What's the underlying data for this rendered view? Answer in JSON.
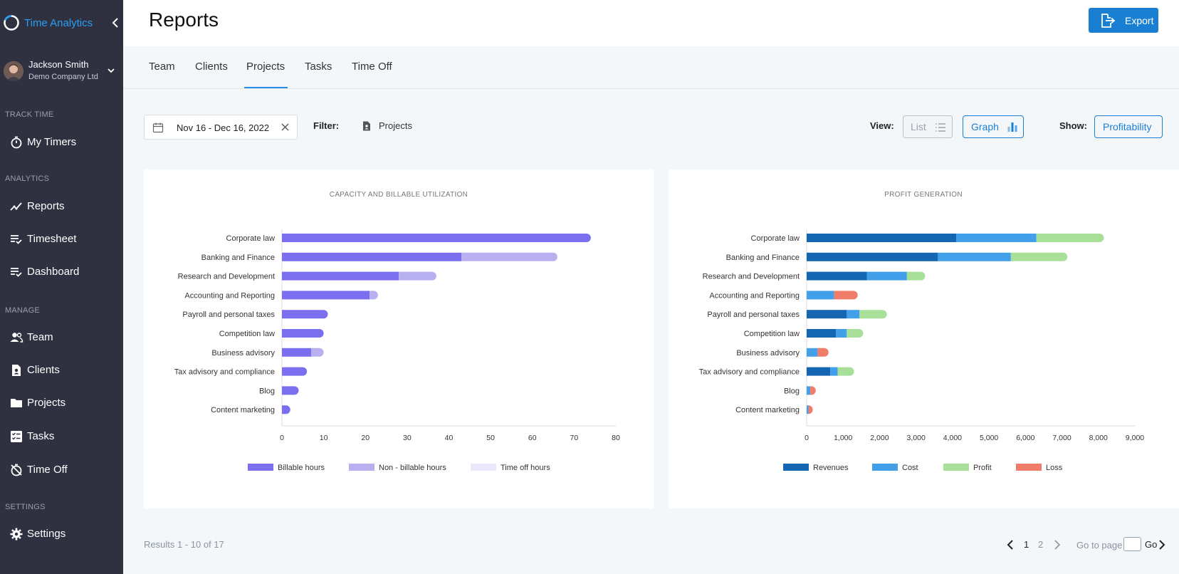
{
  "app": {
    "name": "Time Analytics"
  },
  "user": {
    "name": "Jackson Smith",
    "company": "Demo Company Ltd"
  },
  "sidebar": {
    "sections": [
      {
        "label": "TRACK TIME",
        "items": [
          {
            "label": "My Timers",
            "icon": "stopwatch-icon"
          }
        ]
      },
      {
        "label": "ANALYTICS",
        "items": [
          {
            "label": "Reports",
            "icon": "trend-icon"
          },
          {
            "label": "Timesheet",
            "icon": "list-check-icon"
          },
          {
            "label": "Dashboard",
            "icon": "list-check-icon"
          }
        ]
      },
      {
        "label": "MANAGE",
        "items": [
          {
            "label": "Team",
            "icon": "people-icon"
          },
          {
            "label": "Clients",
            "icon": "contact-card-icon"
          },
          {
            "label": "Projects",
            "icon": "folder-icon"
          },
          {
            "label": "Tasks",
            "icon": "checklist-icon"
          },
          {
            "label": "Time Off",
            "icon": "timer-off-icon"
          }
        ]
      },
      {
        "label": "SETTINGS",
        "items": [
          {
            "label": "Settings",
            "icon": "gear-icon"
          }
        ]
      }
    ]
  },
  "header": {
    "title": "Reports",
    "export_label": "Export"
  },
  "tabs": [
    {
      "label": "Team",
      "active": false
    },
    {
      "label": "Clients",
      "active": false
    },
    {
      "label": "Projects",
      "active": true
    },
    {
      "label": "Tasks",
      "active": false
    },
    {
      "label": "Time Off",
      "active": false
    }
  ],
  "toolbar": {
    "date_range": "Nov 16 - Dec 16, 2022",
    "filter_label": "Filter:",
    "filter_value": "Projects",
    "view_label": "View:",
    "view_list": "List",
    "view_graph": "Graph",
    "show_label": "Show:",
    "show_value": "Profitability"
  },
  "colors": {
    "billable": "#7b6ff0",
    "non_billable": "#b8b0f0",
    "time_off": "#e9e7fb",
    "revenues": "#1466b2",
    "cost": "#42a0ea",
    "profit": "#a8e09a",
    "loss": "#f07c6a"
  },
  "chart_data": [
    {
      "type": "bar",
      "orientation": "horizontal",
      "stacked": true,
      "title": "CAPACITY AND BILLABLE UTILIZATION",
      "categories": [
        "Corporate law",
        "Banking and Finance",
        "Research and Development",
        "Accounting and Reporting",
        "Payroll and personal taxes",
        "Competition law",
        "Business advisory",
        "Tax advisory and compliance",
        "Blog",
        "Content marketing"
      ],
      "series": [
        {
          "name": "Billable hours",
          "values": [
            74,
            43,
            28,
            21,
            11,
            10,
            7,
            6,
            4,
            2
          ]
        },
        {
          "name": "Non - billable hours",
          "values": [
            0,
            23,
            9,
            2,
            0,
            0,
            3,
            0,
            0,
            0
          ]
        },
        {
          "name": "Time off hours",
          "values": [
            0,
            0,
            0,
            0,
            0,
            0,
            0,
            0,
            0,
            0
          ]
        }
      ],
      "xlim": [
        0,
        80
      ],
      "xticks": [
        "0",
        "10",
        "20",
        "30",
        "40",
        "50",
        "60",
        "70",
        "80"
      ],
      "legend": "bottom"
    },
    {
      "type": "bar",
      "orientation": "horizontal",
      "stacked": true,
      "title": "PROFIT GENERATION",
      "categories": [
        "Corporate law",
        "Banking and Finance",
        "Research and Development",
        "Accounting and Reporting",
        "Payroll and personal taxes",
        "Competition law",
        "Business advisory",
        "Tax advisory and compliance",
        "Blog",
        "Content marketing"
      ],
      "series": [
        {
          "name": "Revenues",
          "values": [
            4100,
            3600,
            1650,
            0,
            1100,
            800,
            0,
            650,
            0,
            0
          ]
        },
        {
          "name": "Cost",
          "values": [
            2200,
            2000,
            1100,
            750,
            350,
            300,
            300,
            200,
            100,
            50
          ]
        },
        {
          "name": "Profit",
          "values": [
            1850,
            1550,
            500,
            0,
            750,
            450,
            0,
            450,
            0,
            0
          ]
        },
        {
          "name": "Loss",
          "values": [
            0,
            0,
            0,
            650,
            0,
            0,
            300,
            0,
            150,
            100
          ]
        }
      ],
      "xlim": [
        0,
        9000
      ],
      "xticks": [
        "0",
        "1,000",
        "2,000",
        "3,000",
        "4,000",
        "5,000",
        "6,000",
        "7,000",
        "8,000",
        "9,000"
      ],
      "legend": "bottom"
    }
  ],
  "footer": {
    "results": "Results 1 - 10 of 17",
    "pages": [
      "1",
      "2"
    ],
    "goto_label": "Go to page",
    "go_label": "Go"
  }
}
